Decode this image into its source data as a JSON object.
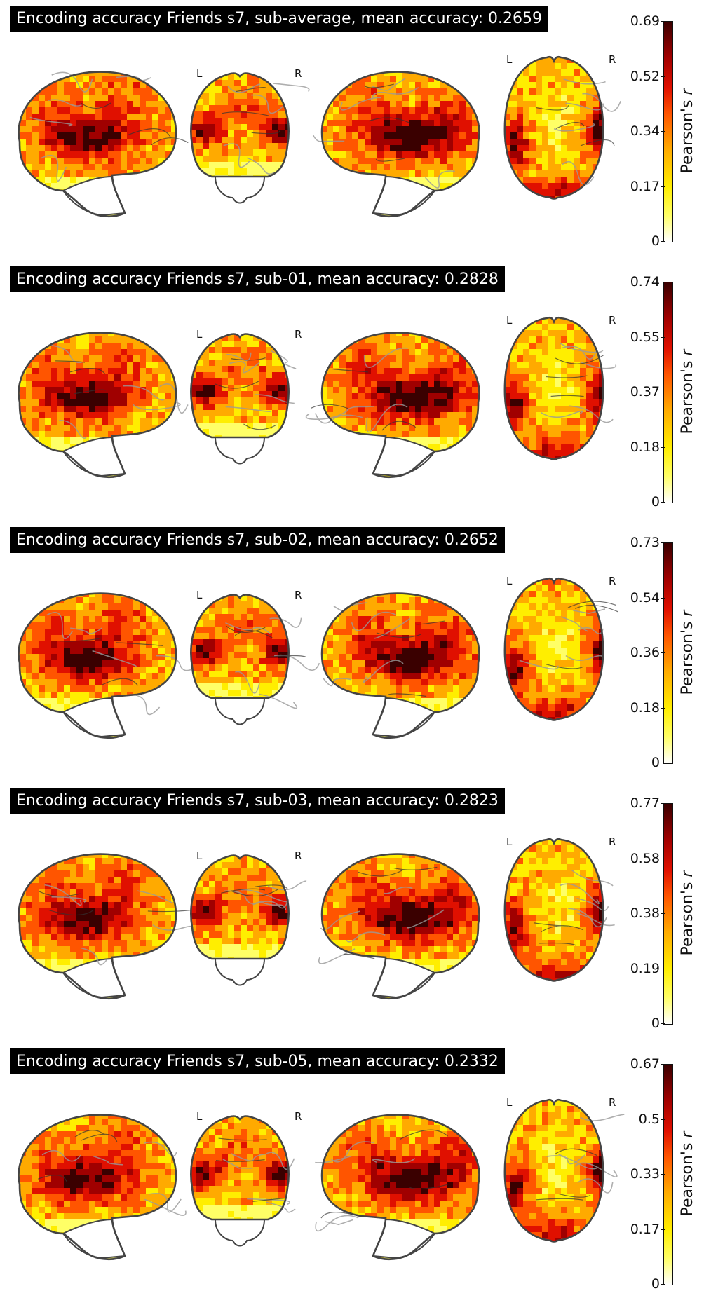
{
  "figure": {
    "views": [
      "sagittal-left",
      "coronal",
      "sagittal-right",
      "axial"
    ],
    "orientation_labels": {
      "left": "L",
      "right": "R"
    },
    "colorbar": {
      "label": "Pearson's",
      "label_var": "r",
      "colormap": [
        "#ffffff",
        "#ffff66",
        "#ffee00",
        "#ffaa00",
        "#ff5500",
        "#e01000",
        "#a00000",
        "#3a0000"
      ]
    }
  },
  "panels": [
    {
      "title": "Encoding accuracy Friends s7, sub-average, mean accuracy: 0.2659",
      "ticks": [
        "0.69",
        "0.52",
        "0.34",
        "0.17",
        "0"
      ],
      "vmin": 0,
      "vmax": 0.69
    },
    {
      "title": "Encoding accuracy Friends s7, sub-01, mean accuracy: 0.2828",
      "ticks": [
        "0.74",
        "0.55",
        "0.37",
        "0.18",
        "0"
      ],
      "vmin": 0,
      "vmax": 0.74
    },
    {
      "title": "Encoding accuracy Friends s7, sub-02, mean accuracy: 0.2652",
      "ticks": [
        "0.73",
        "0.54",
        "0.36",
        "0.18",
        "0"
      ],
      "vmin": 0,
      "vmax": 0.73
    },
    {
      "title": "Encoding accuracy Friends s7, sub-03, mean accuracy: 0.2823",
      "ticks": [
        "0.77",
        "0.58",
        "0.38",
        "0.19",
        "0"
      ],
      "vmin": 0,
      "vmax": 0.77
    },
    {
      "title": "Encoding accuracy Friends s7, sub-05, mean accuracy: 0.2332",
      "ticks": [
        "0.67",
        "0.5",
        "0.33",
        "0.17",
        "0"
      ],
      "vmin": 0,
      "vmax": 0.67
    }
  ]
}
